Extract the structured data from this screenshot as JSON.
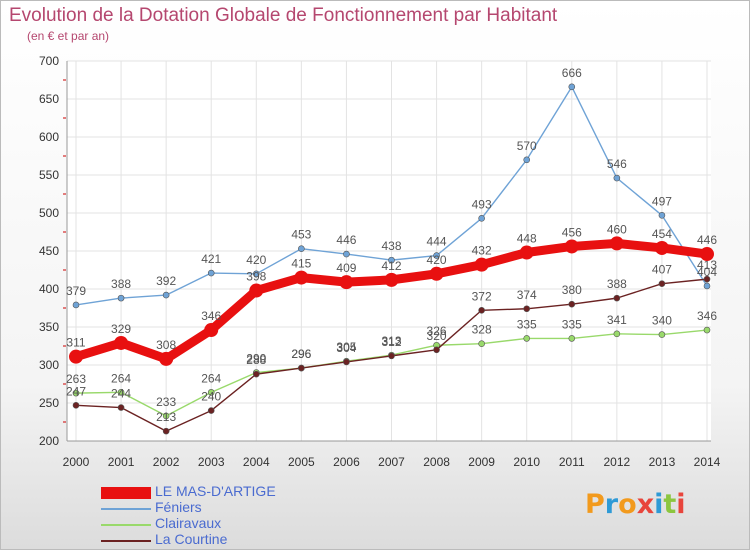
{
  "title": "Evolution de la Dotation Globale de Fonctionnement par Habitant",
  "subtitle": "(en € et par an)",
  "logo": {
    "text": "Proxiti",
    "colors": [
      "#f29a1d",
      "#2e9ad6",
      "#f29a1d",
      "#e8453c",
      "#2e9ad6",
      "#8cc63f",
      "#e8453c"
    ]
  },
  "chart_data": {
    "type": "line",
    "x": [
      "2000",
      "2001",
      "2002",
      "2003",
      "2004",
      "2005",
      "2006",
      "2007",
      "2008",
      "2009",
      "2010",
      "2011",
      "2012",
      "2013",
      "2014"
    ],
    "ylim": [
      200,
      700
    ],
    "yticks": [
      200,
      250,
      300,
      350,
      400,
      450,
      500,
      550,
      600,
      650,
      700
    ],
    "grid": true,
    "legend_position": "bottom-left",
    "series": [
      {
        "name": "Féniers",
        "color": "#6fa3d6",
        "values": [
          379,
          388,
          392,
          421,
          420,
          453,
          446,
          438,
          444,
          493,
          570,
          666,
          546,
          497,
          404
        ]
      },
      {
        "name": "Clairavaux",
        "color": "#99d96b",
        "values": [
          263,
          264,
          233,
          264,
          290,
          296,
          305,
          313,
          326,
          328,
          335,
          335,
          341,
          340,
          346
        ]
      },
      {
        "name": "La Courtine",
        "color": "#6b2222",
        "values": [
          247,
          244,
          213,
          240,
          288,
          296,
          304,
          312,
          320,
          372,
          374,
          380,
          388,
          407,
          413
        ]
      },
      {
        "name": "LE MAS-D'ARTIGE",
        "color": "#e81010",
        "values": [
          311,
          329,
          308,
          346,
          398,
          415,
          409,
          412,
          420,
          432,
          448,
          456,
          460,
          454,
          446
        ]
      }
    ]
  },
  "legend": [
    {
      "label": "LE MAS-D'ARTIGE",
      "color": "#e81010",
      "thickness": 12
    },
    {
      "label": "Féniers",
      "color": "#6fa3d6",
      "thickness": 2
    },
    {
      "label": "Clairavaux",
      "color": "#99d96b",
      "thickness": 2
    },
    {
      "label": "La Courtine",
      "color": "#6b2222",
      "thickness": 2
    }
  ]
}
